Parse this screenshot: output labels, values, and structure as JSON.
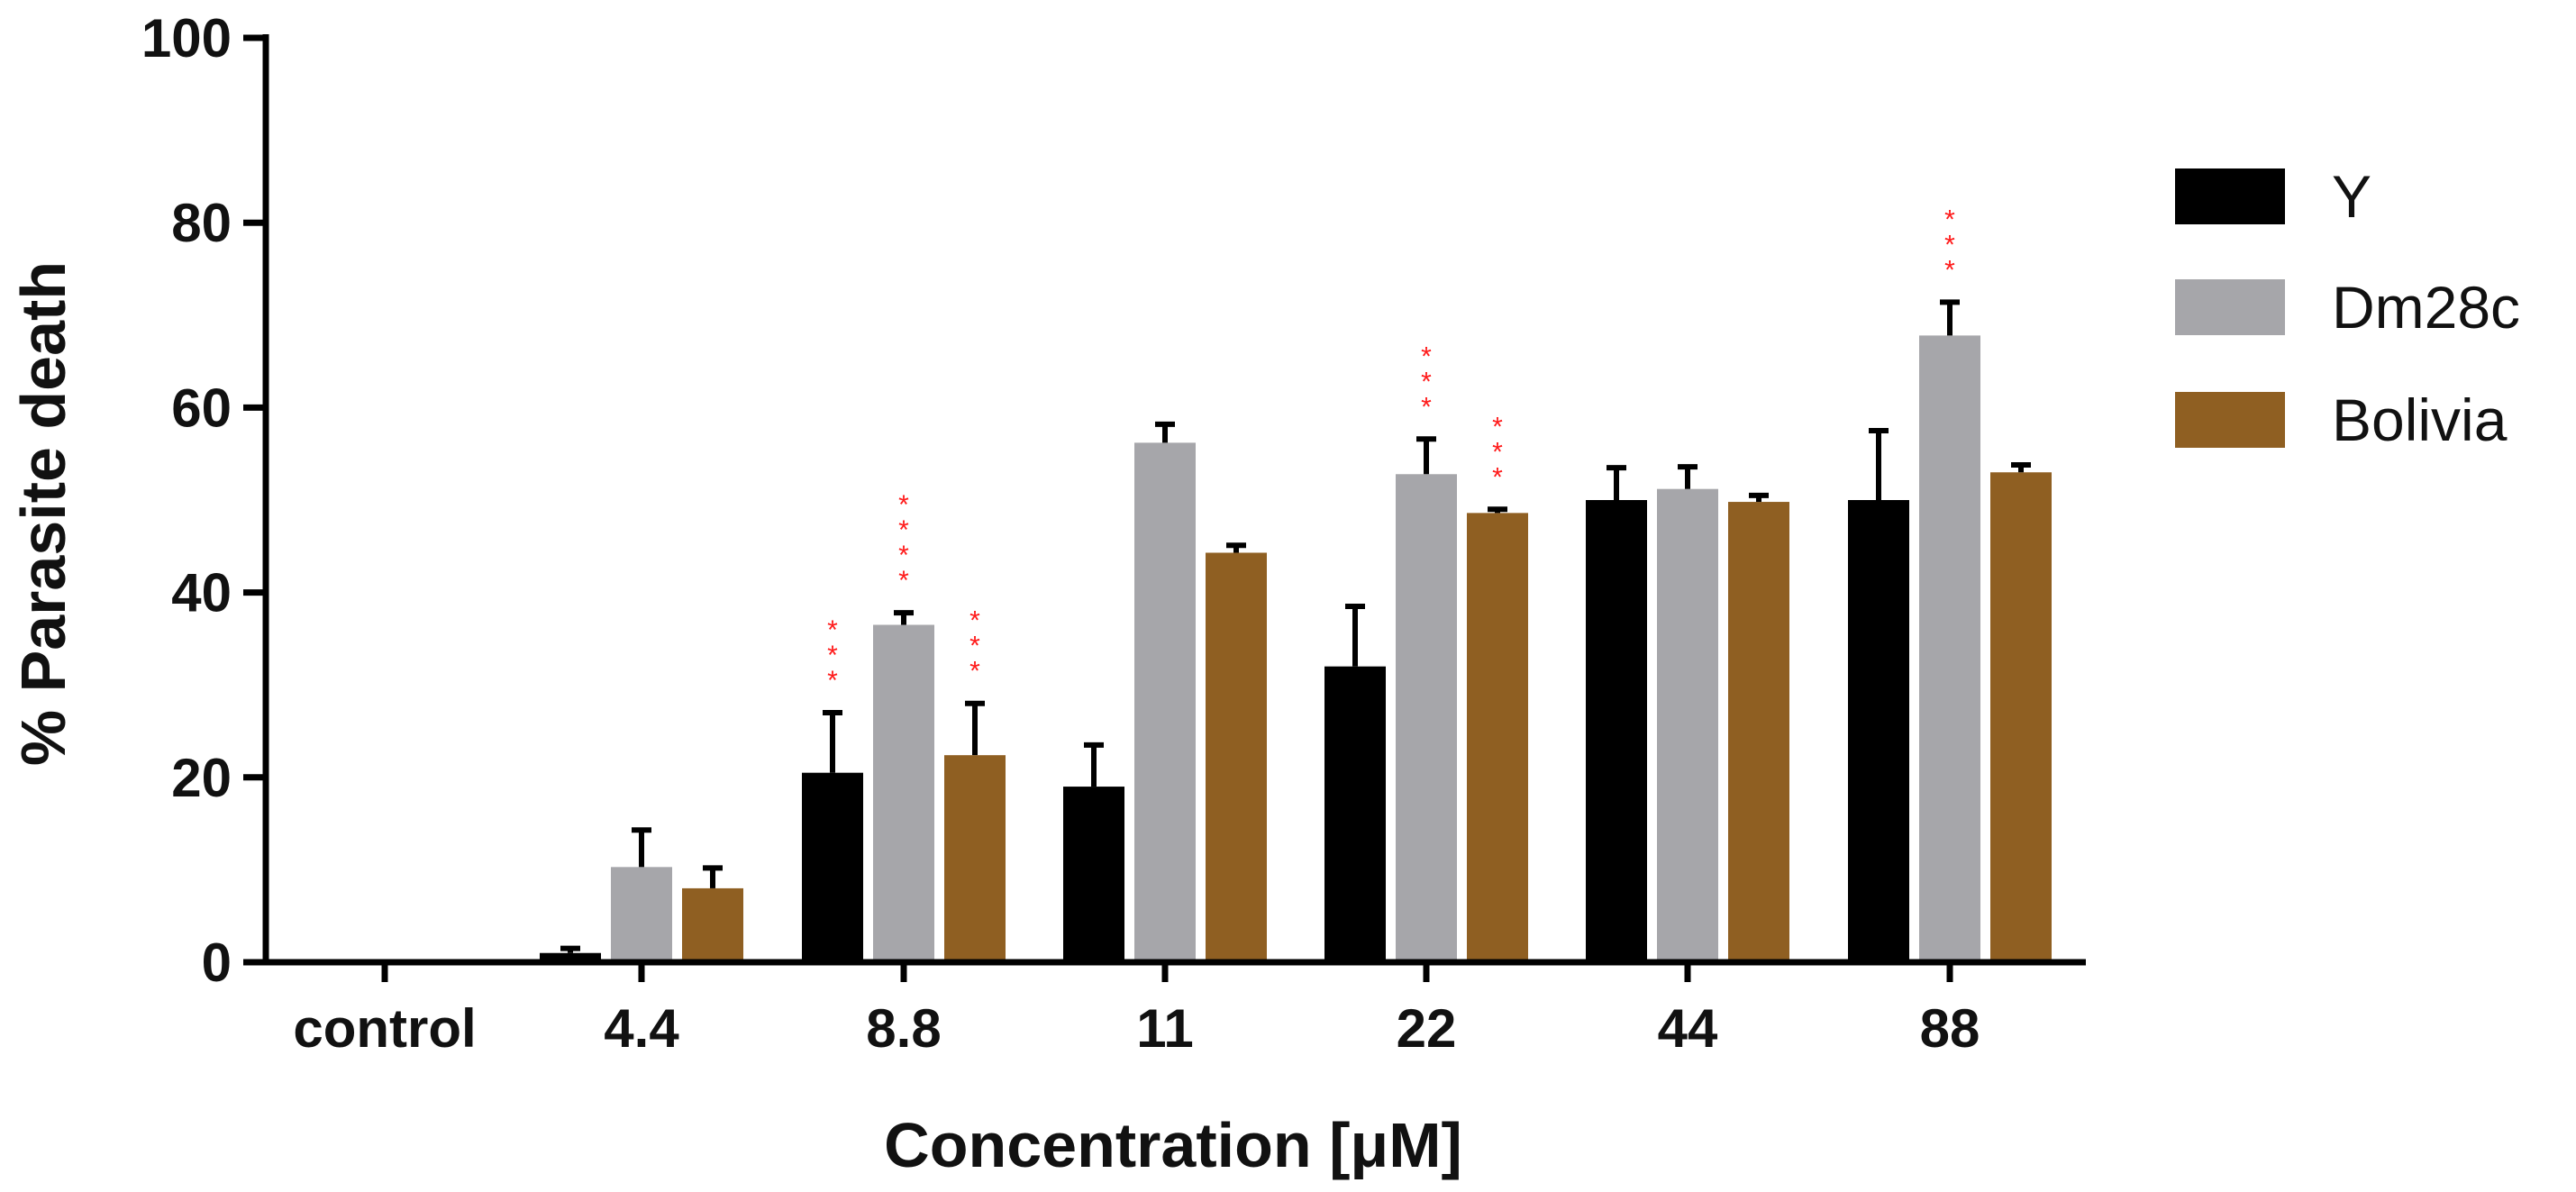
{
  "chart_data": {
    "type": "bar",
    "title": "",
    "xlabel": "Concentration [μM]",
    "ylabel": "% Parasite death",
    "ylim": [
      0,
      100
    ],
    "yticks": [
      "0",
      "20",
      "40",
      "60",
      "80",
      "100"
    ],
    "grid": false,
    "legend_position": "right",
    "categories": [
      "control",
      "4.4",
      "8.8",
      "11",
      "22",
      "44",
      "88"
    ],
    "series": [
      {
        "name": "Y",
        "color": "#000000",
        "values": [
          0,
          1,
          20.5,
          19,
          32,
          50,
          50
        ],
        "errors": [
          0,
          0.5,
          6.5,
          4.5,
          6.5,
          3.5,
          7.5
        ],
        "significance": [
          "",
          "",
          "***",
          "",
          "",
          "",
          ""
        ]
      },
      {
        "name": "Dm28c",
        "color": "#a6a6aa",
        "values": [
          0,
          10.3,
          36.5,
          56.2,
          52.8,
          51.2,
          67.8
        ],
        "errors": [
          0,
          4,
          1.3,
          2,
          3.8,
          2.4,
          3.6
        ],
        "significance": [
          "",
          "",
          "****",
          "",
          "***",
          "",
          "***"
        ]
      },
      {
        "name": "Bolivia",
        "color": "#8f5f22",
        "values": [
          0,
          8,
          22.4,
          44.3,
          48.6,
          49.8,
          53
        ],
        "errors": [
          0,
          2.2,
          5.6,
          0.8,
          0.4,
          0.7,
          0.8
        ],
        "significance": [
          "",
          "",
          "***",
          "",
          "***",
          "",
          ""
        ]
      }
    ]
  }
}
